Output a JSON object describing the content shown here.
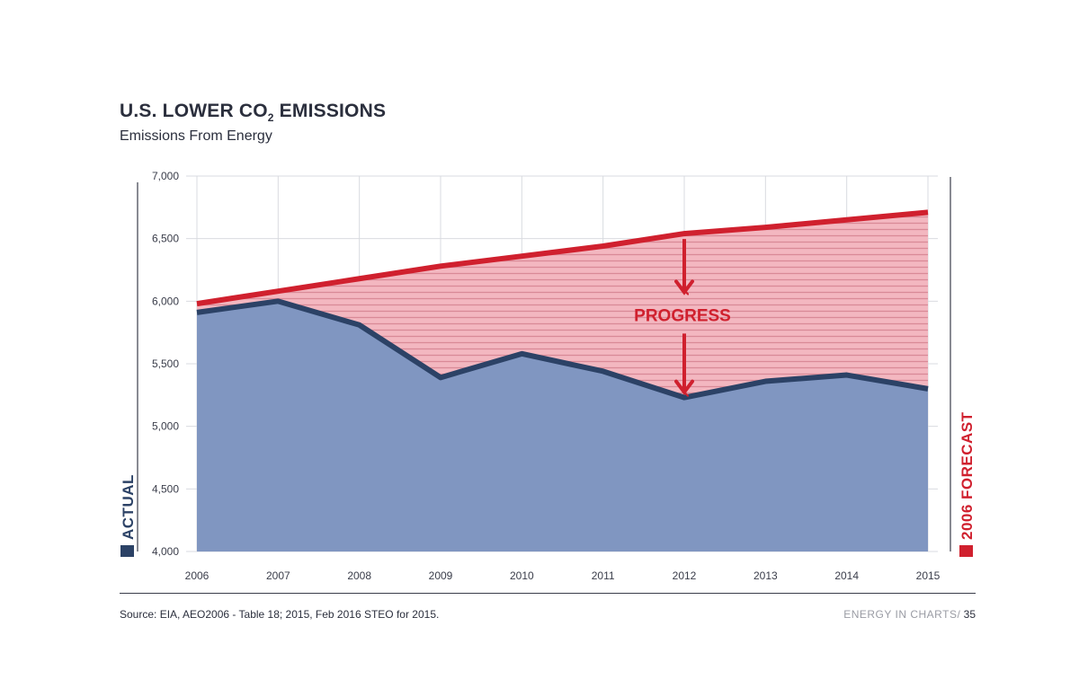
{
  "header": {
    "title_prefix": "U.S. LOWER CO",
    "title_sub": "2",
    "title_suffix": " EMISSIONS",
    "subtitle": "Emissions From Energy"
  },
  "labels": {
    "actual": "ACTUAL",
    "forecast": "2006 FORECAST",
    "progress": "PROGRESS"
  },
  "footer": {
    "source": "Source:  EIA, AEO2006 - Table 18; 2015, Feb 2016 STEO for 2015.",
    "brand": "ENERGY IN CHARTS/",
    "page": " 35"
  },
  "colors": {
    "actual_fill": "#8096c1",
    "actual_line": "#2c4266",
    "forecast_line": "#d0202e",
    "forecast_fill": "#f3b7c0",
    "hatch": "#d98a97",
    "grid": "#d9dbe0",
    "axis_text": "#3a3d4a"
  },
  "chart_data": {
    "type": "area",
    "title": "U.S. LOWER CO2 EMISSIONS",
    "subtitle": "Emissions From Energy",
    "x": [
      "2006",
      "2007",
      "2008",
      "2009",
      "2010",
      "2011",
      "2012",
      "2013",
      "2014",
      "2015"
    ],
    "series": [
      {
        "name": "ACTUAL",
        "values": [
          5910,
          6000,
          5810,
          5390,
          5580,
          5440,
          5230,
          5360,
          5410,
          5300
        ]
      },
      {
        "name": "2006 FORECAST",
        "values": [
          5980,
          6080,
          6180,
          6280,
          6360,
          6440,
          6540,
          6590,
          6650,
          6710
        ]
      }
    ],
    "ylim": [
      4000,
      7000
    ],
    "yticks": [
      "4,000",
      "4,500",
      "5,000",
      "5,500",
      "6,000",
      "6,500",
      "7,000"
    ],
    "ytick_values": [
      4000,
      4500,
      5000,
      5500,
      6000,
      6500,
      7000
    ],
    "annotation": {
      "text": "PROGRESS",
      "x": "2012"
    },
    "grid": true
  }
}
